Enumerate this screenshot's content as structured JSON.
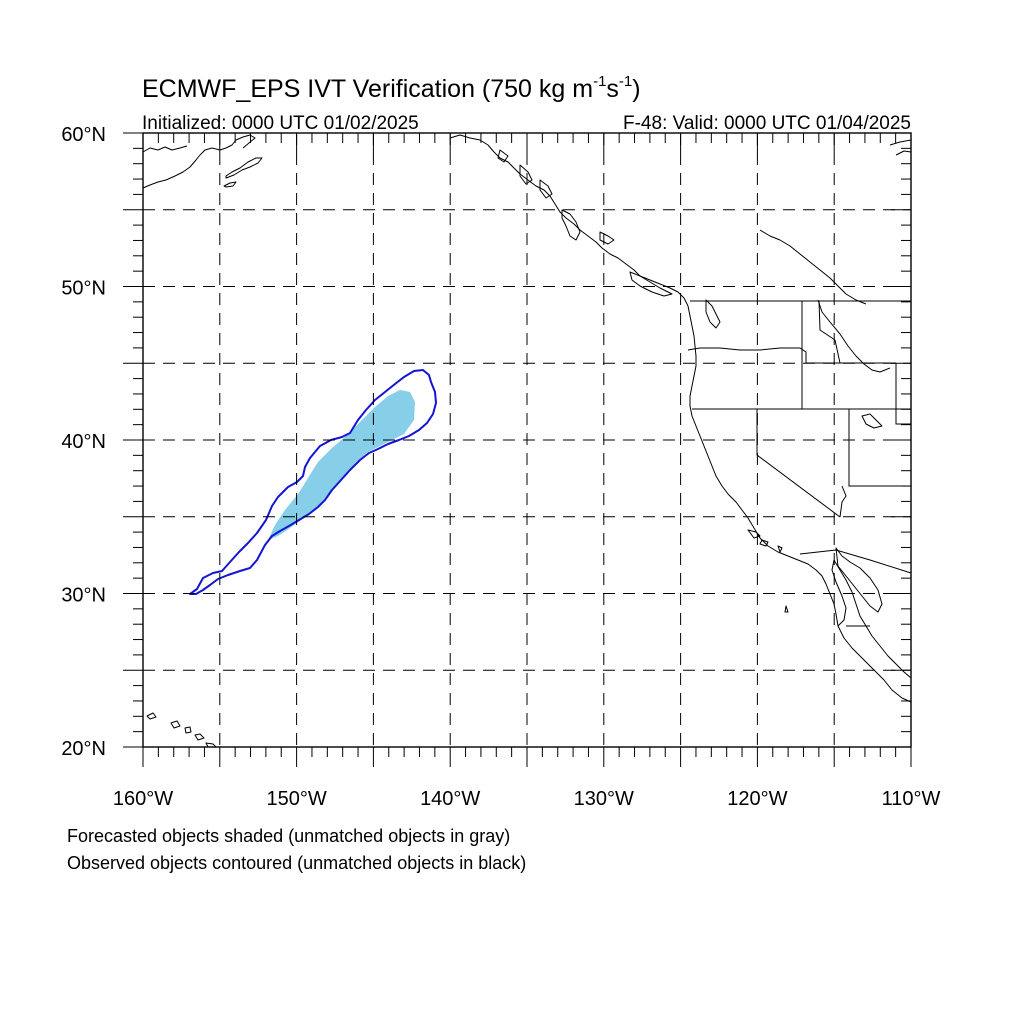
{
  "title": {
    "main": "ECMWF_EPS IVT Verification (750 kg m",
    "sup1": "-1",
    "mid": "s",
    "sup2": "-1",
    "end": ")"
  },
  "subtitle": {
    "left": "Initialized: 0000 UTC 01/02/2025",
    "right": "F-48: Valid: 0000 UTC 01/04/2025"
  },
  "map": {
    "lon_range": [
      -160,
      -110
    ],
    "lat_range": [
      20,
      60
    ],
    "lon_ticks": [
      {
        "value": -160,
        "label": "160°W"
      },
      {
        "value": -150,
        "label": "150°W"
      },
      {
        "value": -140,
        "label": "140°W"
      },
      {
        "value": -130,
        "label": "130°W"
      },
      {
        "value": -120,
        "label": "120°W"
      },
      {
        "value": -110,
        "label": "110°W"
      }
    ],
    "lat_ticks": [
      {
        "value": 60,
        "label": "60°N"
      },
      {
        "value": 50,
        "label": "50°N"
      },
      {
        "value": 40,
        "label": "40°N"
      },
      {
        "value": 30,
        "label": "30°N"
      },
      {
        "value": 20,
        "label": "20°N"
      }
    ],
    "grid_spacing_deg": 5,
    "grid_style": "dashed",
    "colors": {
      "forecast_fill": "#87cfe8",
      "observed_contour": "#1414d2",
      "coastline": "#000000"
    }
  },
  "footer": {
    "line1": "Forecasted objects shaded (unmatched objects in gray)",
    "line2": "Observed objects contoured (unmatched objects in black)"
  }
}
